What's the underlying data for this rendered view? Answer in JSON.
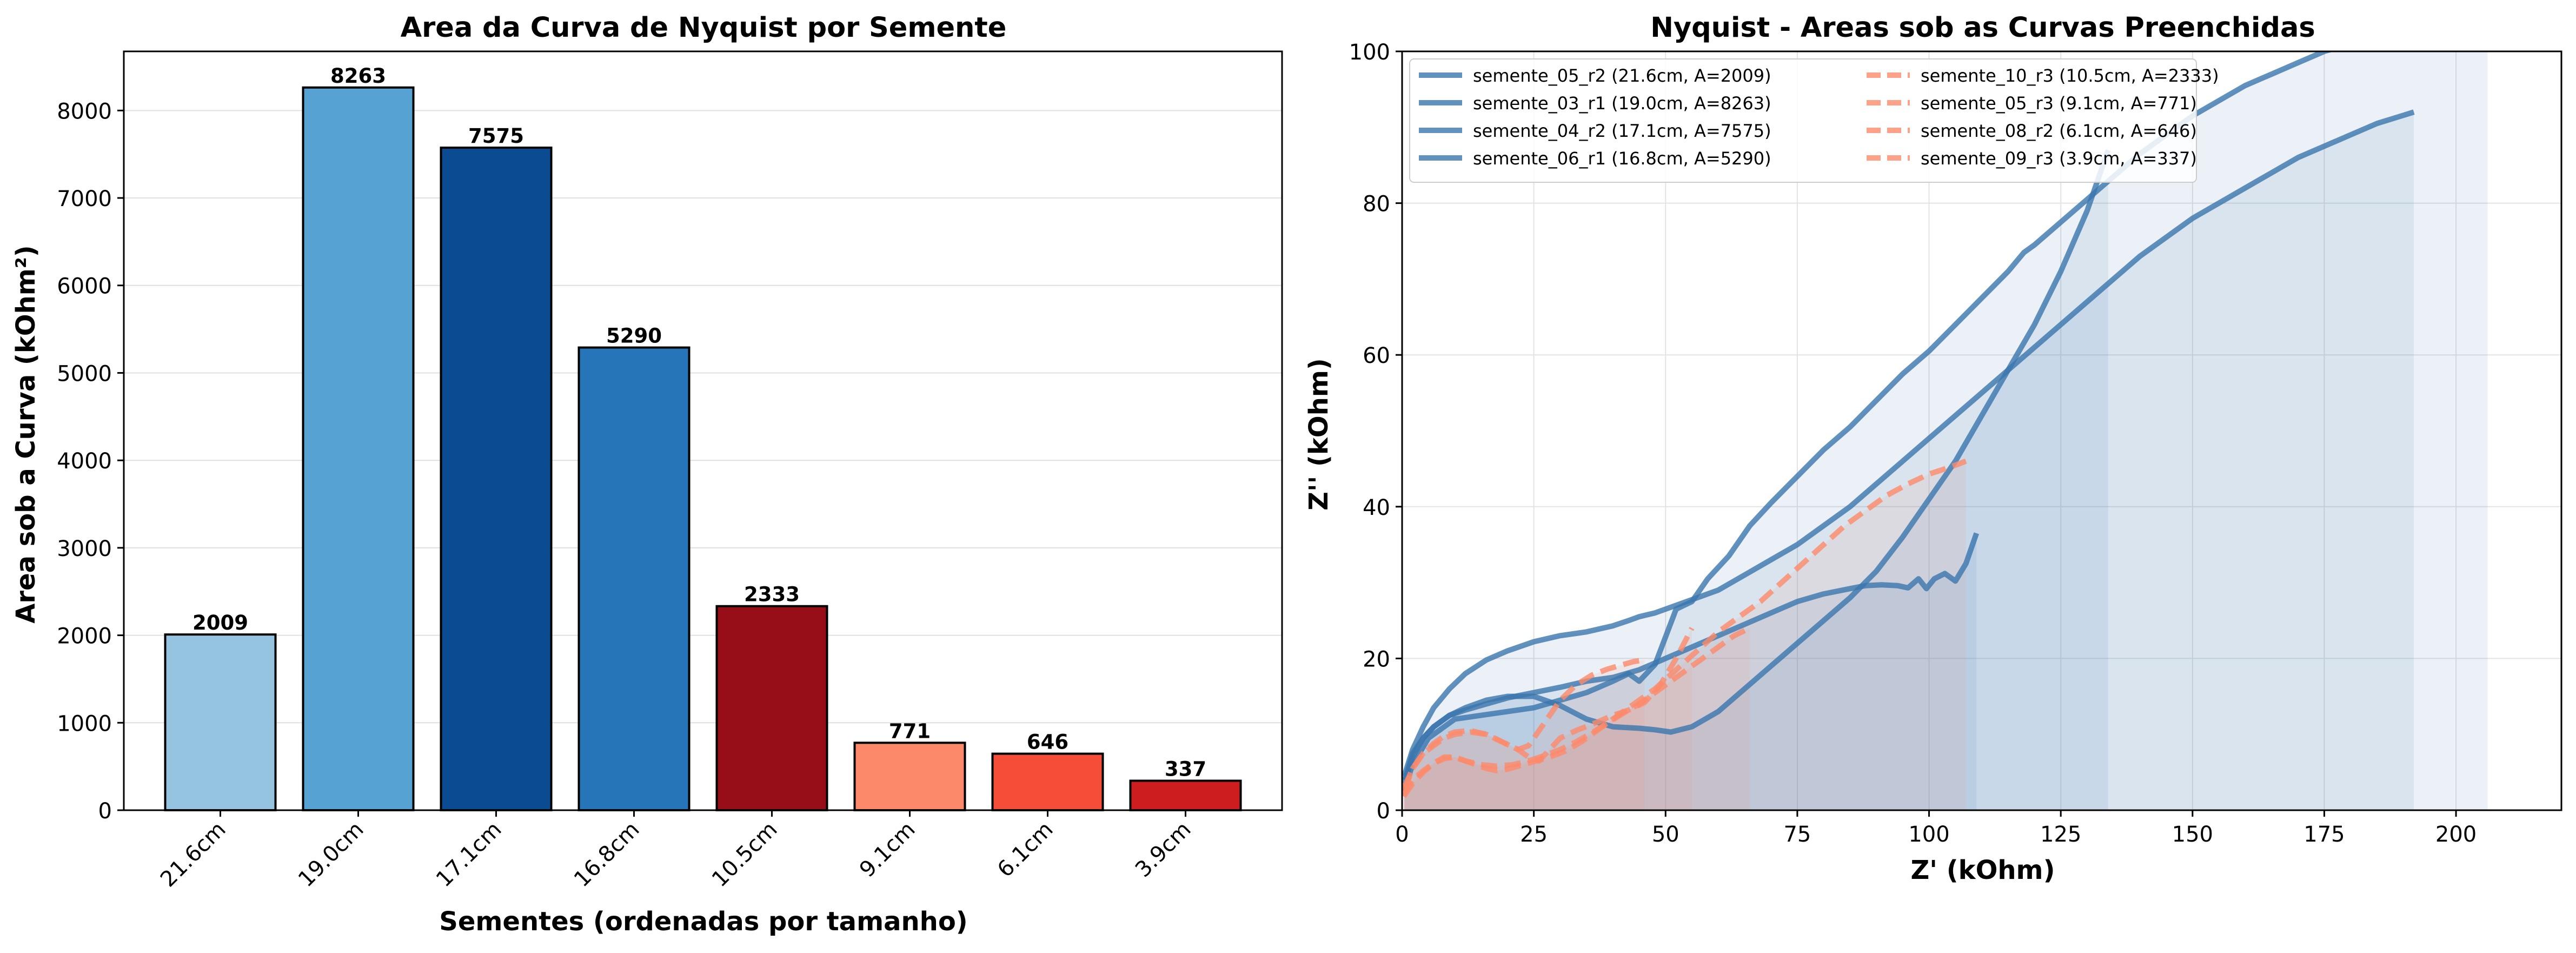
{
  "chart_data": [
    {
      "type": "bar",
      "title": "Area da Curva de Nyquist por Semente",
      "xlabel": "Sementes (ordenadas por tamanho)",
      "ylabel": "Area sob a Curva (kOhm²)",
      "categories": [
        "21.6cm",
        "19.0cm",
        "17.1cm",
        "16.8cm",
        "10.5cm",
        "9.1cm",
        "6.1cm",
        "3.9cm"
      ],
      "values": [
        2009,
        8263,
        7575,
        5290,
        2333,
        771,
        646,
        337
      ],
      "value_labels": [
        "2009",
        "8263",
        "7575",
        "5290",
        "2333",
        "771",
        "646",
        "337"
      ],
      "colors": [
        "#94c4df",
        "#56a2d2",
        "#0a4b91",
        "#2675b8",
        "#970e19",
        "#fc8a6a",
        "#f44d38",
        "#ce1d1e"
      ],
      "ylim": [
        0,
        8676
      ],
      "yticks": [
        0,
        1000,
        2000,
        3000,
        4000,
        5000,
        6000,
        7000,
        8000
      ],
      "grid": "y"
    },
    {
      "type": "line",
      "title": "Nyquist - Areas sob as Curvas Preenchidas",
      "xlabel": "Z' (kOhm)",
      "ylabel": "Z'' (kOhm)",
      "xlim": [
        0,
        220
      ],
      "ylim": [
        0,
        100
      ],
      "xticks": [
        0,
        25,
        50,
        75,
        100,
        125,
        150,
        175,
        200
      ],
      "yticks": [
        0,
        20,
        40,
        60,
        80,
        100
      ],
      "grid": "both",
      "legend_position": "top-left",
      "legend_columns": 2,
      "blue_color": "#3a75ad",
      "orange_color": "#fc8a6a",
      "series": [
        {
          "name": "semente_05_r2 (21.6cm, A=2009)",
          "style": "solid",
          "color": "#3a75ad",
          "x": [
            0.4,
            2,
            4,
            6,
            9,
            12,
            16,
            20,
            25,
            30,
            35,
            40,
            45,
            50,
            55,
            60,
            65,
            70,
            75,
            80,
            85,
            88,
            91,
            94,
            96,
            98,
            99.5,
            101,
            103,
            105,
            107,
            109
          ],
          "y": [
            3.5,
            7,
            9.5,
            11,
            12.5,
            13.2,
            14,
            14.8,
            15.5,
            16.2,
            17,
            17.5,
            18.5,
            20,
            21.5,
            23,
            24.5,
            26,
            27.5,
            28.5,
            29.2,
            29.6,
            29.7,
            29.6,
            29.3,
            30.5,
            29.2,
            30.5,
            31.2,
            30.2,
            32.5,
            36.5
          ]
        },
        {
          "name": "semente_03_r1 (19.0cm, A=8263)",
          "style": "solid",
          "color": "#3a75ad",
          "x": [
            0.5,
            2,
            4,
            6,
            9,
            12,
            16,
            20,
            25,
            30,
            35,
            40,
            45,
            48,
            51,
            55,
            60,
            65,
            70,
            75,
            80,
            85,
            90,
            95,
            100,
            105,
            110,
            115,
            120,
            125,
            130,
            134
          ],
          "y": [
            4,
            7.5,
            9.5,
            11,
            12.5,
            13.5,
            14.5,
            15,
            15,
            13.8,
            12,
            11,
            10.8,
            10.6,
            10.3,
            11,
            13,
            16,
            19,
            22,
            25,
            28,
            31.5,
            36,
            41,
            46,
            52,
            58,
            64,
            71,
            79,
            87
          ]
        },
        {
          "name": "semente_04_r2 (17.1cm, A=7575)",
          "style": "solid",
          "color": "#3a75ad",
          "x": [
            0.4,
            2,
            4,
            6,
            9,
            12,
            16,
            20,
            25,
            30,
            35,
            40,
            43,
            45,
            48,
            52,
            56,
            60,
            65,
            70,
            75,
            80,
            85,
            90,
            95,
            100,
            110,
            120,
            130,
            140,
            150,
            160,
            170,
            180,
            185,
            192
          ],
          "y": [
            4.5,
            8,
            11,
            13.5,
            16,
            18,
            19.8,
            21,
            22.2,
            23,
            23.5,
            24.3,
            25,
            25.5,
            26,
            27,
            28,
            29,
            31,
            33,
            35,
            37.5,
            40,
            43,
            46,
            49,
            55,
            61,
            67,
            73,
            78,
            82,
            86,
            89,
            90.5,
            92
          ]
        },
        {
          "name": "semente_06_r1 (16.8cm, A=5290)",
          "style": "solid",
          "color": "#3a75ad",
          "x": [
            0.3,
            2,
            5,
            10,
            15,
            20,
            25,
            30,
            35,
            40,
            43,
            45,
            48,
            52,
            55,
            58,
            62,
            66,
            70,
            75,
            80,
            85,
            90,
            95,
            100,
            105,
            110,
            115,
            118,
            120,
            125,
            130,
            135,
            140,
            145,
            150,
            155,
            160,
            165,
            170,
            175,
            180,
            185,
            190,
            195,
            200,
            206
          ],
          "y": [
            2.5,
            6,
            9.5,
            12,
            12.5,
            13,
            13.5,
            14.5,
            15.5,
            17,
            18,
            17,
            19.2,
            26.5,
            27.5,
            30.5,
            33.5,
            37.5,
            40.5,
            44,
            47.5,
            50.5,
            54,
            57.5,
            60.5,
            64,
            67.5,
            71,
            73.5,
            74.5,
            77.5,
            80.5,
            83.5,
            86.5,
            89,
            91.5,
            93.5,
            95.5,
            97,
            98.5,
            100,
            101,
            102,
            103,
            103.5,
            104.2,
            105.5
          ]
        },
        {
          "name": "semente_10_r3 (10.5cm, A=2333)",
          "style": "dashed",
          "color": "#fc8a6a",
          "x": [
            0.3,
            2,
            4,
            6,
            8,
            10,
            12,
            14,
            16,
            18,
            20,
            22,
            25,
            28,
            31,
            34,
            37,
            40,
            44,
            48,
            52,
            56,
            60,
            64,
            68,
            72,
            76,
            80,
            84,
            88,
            92,
            96,
            100,
            104,
            107
          ],
          "y": [
            2,
            4,
            5.2,
            6.2,
            6.8,
            7,
            6.5,
            6,
            5.5,
            5.2,
            5.4,
            5.8,
            6.4,
            7,
            7.8,
            9,
            10.5,
            12,
            14,
            16,
            18.5,
            21,
            23.5,
            25.5,
            27.5,
            30,
            32.5,
            35,
            37.5,
            39.5,
            41.5,
            43,
            44.3,
            45.2,
            46
          ]
        },
        {
          "name": "semente_05_r3 (9.1cm, A=771)",
          "style": "dashed",
          "color": "#fc8a6a",
          "x": [
            0.4,
            2,
            4,
            6,
            8,
            10,
            13,
            16,
            19,
            22,
            24,
            26,
            28,
            30,
            33,
            36,
            40,
            43,
            46,
            49,
            52,
            55
          ],
          "y": [
            2.5,
            5.5,
            7.5,
            8.5,
            9.5,
            10,
            10.3,
            10,
            9,
            8,
            7,
            6.5,
            8,
            9.5,
            10.5,
            11.3,
            12.5,
            13.2,
            14.2,
            16.5,
            20,
            24
          ]
        },
        {
          "name": "semente_08_r2 (6.1cm, A=646)",
          "style": "dashed",
          "color": "#fc8a6a",
          "x": [
            0.3,
            2,
            4,
            6,
            8,
            10,
            12,
            15,
            18,
            21,
            24,
            27,
            30,
            33,
            36,
            39,
            42,
            45,
            48,
            51,
            54,
            57,
            60,
            63,
            66
          ],
          "y": [
            1.8,
            3.5,
            5,
            6.2,
            7,
            7,
            6.5,
            6,
            5.8,
            6,
            6.5,
            7.2,
            8,
            9,
            10.2,
            11.5,
            12.8,
            14,
            15.5,
            17,
            18.5,
            20,
            21.5,
            23,
            24
          ]
        },
        {
          "name": "semente_09_r3 (3.9cm, A=337)",
          "style": "dashed",
          "color": "#fc8a6a",
          "x": [
            0.4,
            2,
            4,
            6,
            8,
            10,
            13,
            16,
            19,
            22,
            24,
            26,
            28,
            30,
            33,
            36,
            39,
            42,
            44,
            46
          ],
          "y": [
            3,
            5.5,
            7.5,
            8.8,
            9.8,
            10.3,
            10.5,
            10,
            9,
            8,
            8.5,
            10.5,
            12.5,
            14.5,
            16.5,
            17.8,
            18.6,
            19.2,
            19.6,
            19.8
          ]
        }
      ]
    }
  ]
}
